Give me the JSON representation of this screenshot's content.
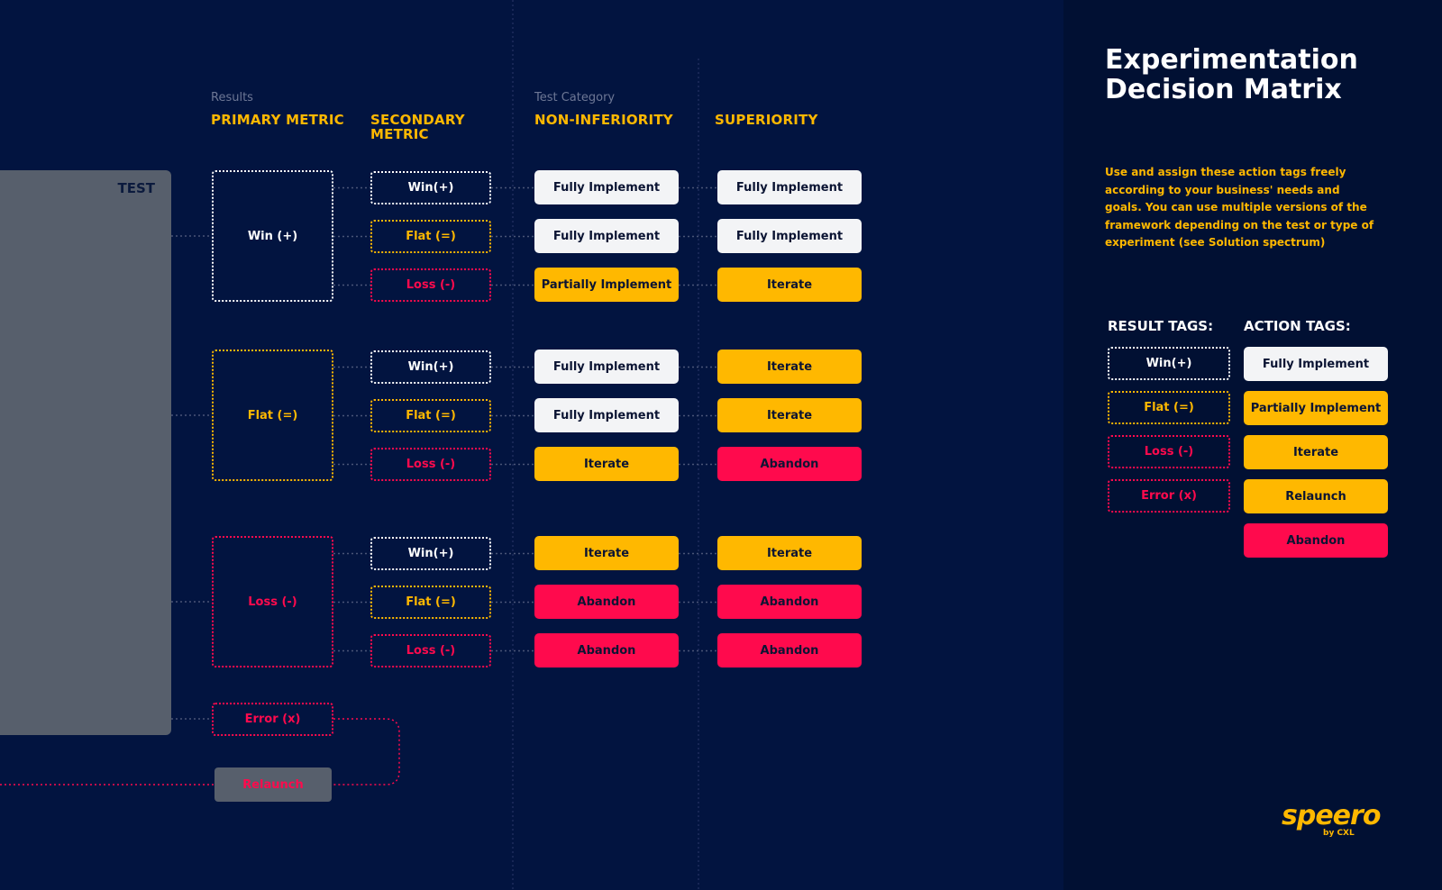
{
  "title": "Experimentation Decision Matrix",
  "description": "Use and assign these action tags freely according to your business' needs and goals. You can use multiple versions of the  framework depending on the test or type of experiment (see Solution spectrum)",
  "test_label": "TEST",
  "headers": {
    "results_small": "Results",
    "primary_metric": "PRIMARY METRIC",
    "secondary_metric": "SECONDARY METRIC",
    "test_category_small": "Test Category",
    "non_inferiority": "NON-INFERIORITY",
    "superiority": "SUPERIORITY"
  },
  "primary_groups": [
    {
      "label": "Win (+)",
      "color": "white",
      "rows": [
        {
          "secondary": "Win(+)",
          "secondary_color": "white",
          "non_inferiority": "Fully Implement",
          "ni_color": "white",
          "superiority": "Fully Implement",
          "sup_color": "white"
        },
        {
          "secondary": "Flat (=)",
          "secondary_color": "yellow",
          "non_inferiority": "Fully Implement",
          "ni_color": "white",
          "superiority": "Fully Implement",
          "sup_color": "white"
        },
        {
          "secondary": "Loss (-)",
          "secondary_color": "red",
          "non_inferiority": "Partially Implement",
          "ni_color": "yellow",
          "superiority": "Iterate",
          "sup_color": "yellow"
        }
      ]
    },
    {
      "label": "Flat (=)",
      "color": "yellow",
      "rows": [
        {
          "secondary": "Win(+)",
          "secondary_color": "white",
          "non_inferiority": "Fully Implement",
          "ni_color": "white",
          "superiority": "Iterate",
          "sup_color": "yellow"
        },
        {
          "secondary": "Flat (=)",
          "secondary_color": "yellow",
          "non_inferiority": "Fully Implement",
          "ni_color": "white",
          "superiority": "Iterate",
          "sup_color": "yellow"
        },
        {
          "secondary": "Loss (-)",
          "secondary_color": "red",
          "non_inferiority": "Iterate",
          "ni_color": "yellow",
          "superiority": "Abandon",
          "sup_color": "red"
        }
      ]
    },
    {
      "label": "Loss (-)",
      "color": "red",
      "rows": [
        {
          "secondary": "Win(+)",
          "secondary_color": "white",
          "non_inferiority": "Iterate",
          "ni_color": "yellow",
          "superiority": "Iterate",
          "sup_color": "yellow"
        },
        {
          "secondary": "Flat (=)",
          "secondary_color": "yellow",
          "non_inferiority": "Abandon",
          "ni_color": "red",
          "superiority": "Abandon",
          "sup_color": "red"
        },
        {
          "secondary": "Loss (-)",
          "secondary_color": "red",
          "non_inferiority": "Abandon",
          "ni_color": "red",
          "superiority": "Abandon",
          "sup_color": "red"
        }
      ]
    }
  ],
  "error_tag": "Error (x)",
  "relaunch_label": "Relaunch",
  "legend": {
    "result_tags_header": "RESULT TAGS:",
    "action_tags_header": "ACTION TAGS:",
    "result_tags": [
      {
        "label": "Win(+)",
        "color": "white"
      },
      {
        "label": "Flat (=)",
        "color": "yellow"
      },
      {
        "label": "Loss (-)",
        "color": "red"
      },
      {
        "label": "Error (x)",
        "color": "red"
      }
    ],
    "action_tags": [
      {
        "label": "Fully Implement",
        "color": "white"
      },
      {
        "label": "Partially Implement",
        "color": "yellow"
      },
      {
        "label": "Iterate",
        "color": "yellow"
      },
      {
        "label": "Relaunch",
        "color": "yellow"
      },
      {
        "label": "Abandon",
        "color": "red"
      }
    ]
  },
  "logo": {
    "name": "speero",
    "sub": "by CXL"
  },
  "colors": {
    "background": "#021440",
    "white": "#f3f4f6",
    "yellow": "#ffb800",
    "red": "#ff0a4d",
    "grey": "#575f6c"
  }
}
